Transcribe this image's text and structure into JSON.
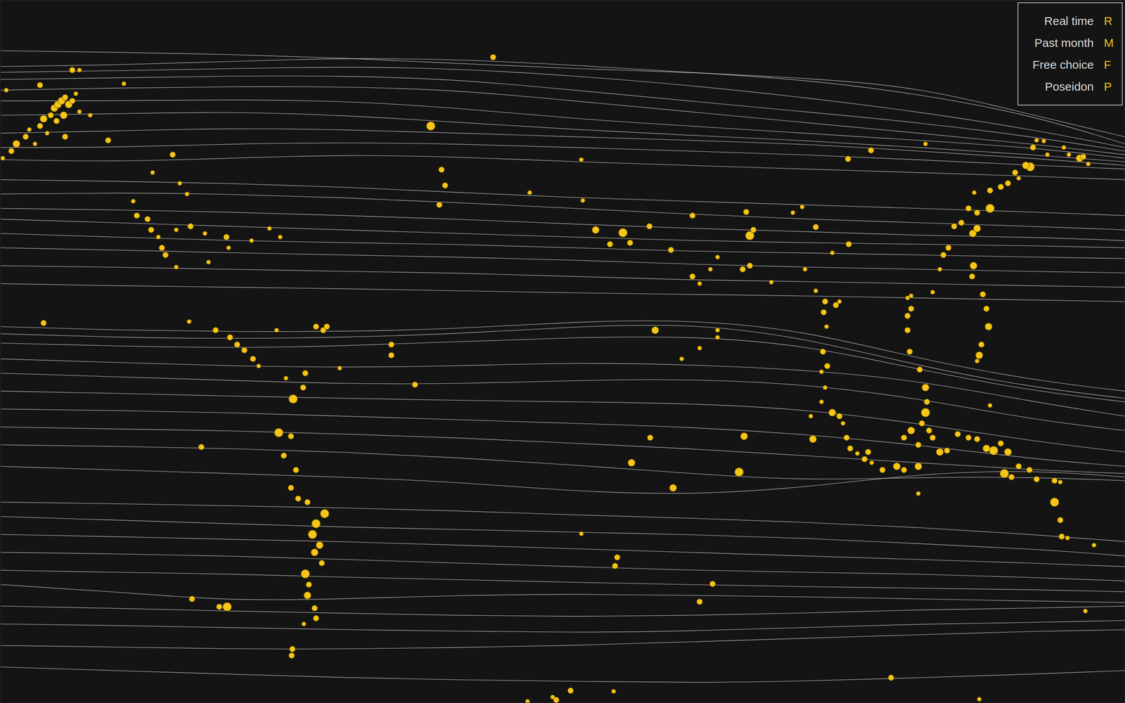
{
  "chart_data": {
    "type": "line",
    "color": "#ffffff",
    "tick_labels": false,
    "legend": "top-right",
    "xlim": [
      0,
      1568
    ],
    "ylim": [
      980,
      0
    ],
    "x": [
      0,
      160,
      320,
      480,
      640,
      800,
      960,
      1120,
      1280,
      1440,
      1568
    ],
    "series": [
      {
        "values": [
          92,
          90,
          85,
          80,
          82,
          90,
          100,
          110,
          130,
          160,
          200
        ]
      },
      {
        "values": [
          100,
          98,
          95,
          92,
          95,
          105,
          118,
          135,
          155,
          180,
          205
        ]
      },
      {
        "values": [
          110,
          108,
          105,
          105,
          110,
          125,
          140,
          155,
          170,
          190,
          210
        ]
      },
      {
        "values": [
          125,
          122,
          120,
          120,
          125,
          140,
          155,
          170,
          185,
          200,
          215
        ]
      },
      {
        "values": [
          140,
          140,
          138,
          140,
          150,
          165,
          175,
          185,
          195,
          205,
          220
        ]
      },
      {
        "values": [
          160,
          158,
          155,
          160,
          170,
          180,
          188,
          195,
          205,
          215,
          225
        ]
      },
      {
        "values": [
          185,
          182,
          178,
          180,
          185,
          190,
          195,
          200,
          210,
          220,
          230
        ]
      },
      {
        "values": [
          205,
          205,
          200,
          198,
          200,
          205,
          210,
          215,
          222,
          230,
          235
        ]
      },
      {
        "values": [
          222,
          225,
          220,
          215,
          218,
          225,
          230,
          235,
          240,
          245,
          250
        ]
      },
      {
        "values": [
          250,
          252,
          255,
          260,
          268,
          275,
          280,
          285,
          290,
          295,
          300
        ]
      },
      {
        "values": [
          270,
          268,
          270,
          275,
          282,
          290,
          298,
          305,
          310,
          315,
          320
        ]
      },
      {
        "values": [
          290,
          292,
          295,
          300,
          305,
          312,
          318,
          322,
          328,
          330,
          335
        ]
      },
      {
        "values": [
          305,
          310,
          315,
          320,
          325,
          330,
          335,
          338,
          340,
          342,
          345
        ]
      },
      {
        "values": [
          325,
          330,
          335,
          338,
          340,
          345,
          350,
          352,
          355,
          358,
          360
        ]
      },
      {
        "values": [
          345,
          348,
          352,
          355,
          358,
          362,
          368,
          372,
          375,
          378,
          380
        ]
      },
      {
        "values": [
          370,
          372,
          375,
          378,
          380,
          385,
          390,
          392,
          395,
          398,
          400
        ]
      },
      {
        "values": [
          395,
          398,
          400,
          402,
          405,
          408,
          410,
          412,
          415,
          418,
          420
        ]
      },
      {
        "values": [
          455,
          460,
          462,
          462,
          458,
          448,
          445,
          460,
          500,
          530,
          545
        ]
      },
      {
        "values": [
          465,
          470,
          472,
          470,
          465,
          455,
          450,
          470,
          510,
          540,
          555
        ]
      },
      {
        "values": [
          478,
          482,
          485,
          482,
          476,
          470,
          468,
          480,
          515,
          545,
          560
        ]
      },
      {
        "values": [
          500,
          505,
          510,
          512,
          510,
          505,
          508,
          515,
          530,
          560,
          580
        ]
      },
      {
        "values": [
          520,
          525,
          530,
          535,
          535,
          530,
          528,
          535,
          555,
          585,
          600
        ]
      },
      {
        "values": [
          545,
          548,
          552,
          555,
          558,
          560,
          562,
          570,
          590,
          615,
          630
        ]
      },
      {
        "values": [
          570,
          572,
          575,
          580,
          585,
          590,
          595,
          605,
          620,
          640,
          650
        ]
      },
      {
        "values": [
          595,
          598,
          600,
          605,
          610,
          618,
          625,
          635,
          645,
          655,
          660
        ]
      },
      {
        "values": [
          620,
          622,
          625,
          630,
          638,
          648,
          660,
          670,
          665,
          665,
          670
        ]
      },
      {
        "values": [
          650,
          655,
          660,
          665,
          672,
          685,
          690,
          680,
          660,
          655,
          665
        ]
      },
      {
        "values": [
          700,
          702,
          705,
          708,
          712,
          718,
          722,
          728,
          735,
          745,
          755
        ]
      },
      {
        "values": [
          720,
          725,
          730,
          735,
          738,
          742,
          745,
          750,
          758,
          765,
          775
        ]
      },
      {
        "values": [
          745,
          748,
          752,
          755,
          760,
          765,
          770,
          775,
          780,
          785,
          790
        ]
      },
      {
        "values": [
          770,
          772,
          775,
          780,
          785,
          790,
          795,
          798,
          800,
          805,
          810
        ]
      },
      {
        "values": [
          795,
          798,
          800,
          805,
          808,
          812,
          815,
          818,
          820,
          822,
          825
        ]
      },
      {
        "values": [
          815,
          825,
          838,
          835,
          830,
          828,
          830,
          832,
          835,
          838,
          840
        ]
      },
      {
        "values": [
          845,
          848,
          852,
          855,
          858,
          860,
          858,
          855,
          850,
          848,
          845
        ]
      },
      {
        "values": [
          870,
          872,
          875,
          878,
          880,
          882,
          880,
          875,
          870,
          868,
          865
        ]
      },
      {
        "values": [
          900,
          902,
          905,
          905,
          903,
          900,
          895,
          890,
          885,
          880,
          878
        ]
      },
      {
        "values": [
          930,
          935,
          940,
          945,
          948,
          950,
          952,
          950,
          945,
          940,
          935
        ]
      },
      {
        "values": [
          70,
          72,
          75,
          80,
          88,
          95,
          100,
          108,
          120,
          160,
          190
        ]
      }
    ],
    "points": {
      "type": "scatter",
      "color": "#f5c518",
      "marker": "circle",
      "x": [
        8,
        22,
        15,
        35,
        40,
        55,
        60,
        70,
        75,
        80,
        85,
        90,
        95,
        100,
        105,
        110,
        65,
        90,
        55,
        100,
        110,
        125,
        150,
        172,
        3,
        48,
        88,
        78,
        185,
        190,
        205,
        210,
        220,
        225,
        230,
        245,
        265,
        245,
        285,
        315,
        318,
        240,
        250,
        260,
        212,
        350,
        375,
        390,
        290,
        60,
        263,
        300,
        320,
        330,
        340,
        352,
        360,
        385,
        440,
        450,
        455,
        545,
        545,
        578,
        600,
        615,
        620,
        612,
        687,
        738,
        810,
        812,
        398,
        408,
        422,
        425,
        388,
        405,
        395,
        412,
        405,
        415,
        428,
        452,
        440,
        435,
        445,
        438,
        448,
        425,
        430,
        428,
        438,
        440,
        423,
        407,
        406,
        280,
        267,
        305,
        316,
        473,
        830,
        850,
        868,
        878,
        905,
        935,
        965,
        965,
        975,
        990,
        1000,
        1035,
        1045,
        1045,
        1040,
        1050,
        1075,
        1105,
        1118,
        1137,
        1160,
        1183,
        1182,
        1214,
        1290,
        1122,
        913,
        950,
        975,
        1000,
        1000,
        906,
        880,
        938,
        1030,
        1037,
        1133,
        993,
        975,
        810,
        860,
        857,
        1137,
        1150,
        1148,
        1165,
        1170,
        1152,
        1147,
        1153,
        1145,
        1150,
        1145,
        1160,
        1170,
        1130,
        1175,
        1180,
        1185,
        1195,
        1205,
        1215,
        1265,
        1270,
        1265,
        1268,
        1282,
        1290,
        1292,
        1290,
        1285,
        1295,
        1270,
        1260,
        1280,
        1300,
        1310,
        1320,
        1230,
        1250,
        1260,
        1280,
        1265,
        1270,
        1300,
        1310,
        1315,
        1322,
        1330,
        1340,
        1350,
        1356,
        1362,
        1358,
        1362,
        1380,
        1380,
        1395,
        1405,
        1415,
        1420,
        1430,
        1440,
        1445,
        1455,
        1436,
        1460,
        1483,
        1490,
        1505,
        1510,
        1517,
        1357,
        1355,
        1370,
        1375,
        1378,
        1368,
        1365,
        1362,
        1335,
        1350,
        1362,
        1375,
        1385,
        1395,
        1405,
        1420,
        1400,
        1410,
        1435,
        1445,
        1470,
        1478,
        1470,
        1478,
        1480,
        1488,
        1525,
        1513,
        1380,
        1242,
        1365,
        1280,
        1210,
        735,
        770,
        775,
        795,
        855
      ],
      "y": [
        125,
        200,
        210,
        190,
        180,
        175,
        165,
        160,
        150,
        145,
        140,
        135,
        145,
        140,
        130,
        155,
        185,
        190,
        118,
        97,
        97,
        160,
        195,
        116,
        220,
        200,
        160,
        168,
        280,
        300,
        305,
        320,
        330,
        345,
        355,
        320,
        315,
        372,
        325,
        330,
        345,
        215,
        255,
        270,
        240,
        335,
        318,
        330,
        365,
        450,
        448,
        460,
        470,
        480,
        488,
        500,
        510,
        460,
        455,
        460,
        455,
        480,
        495,
        536,
        175,
        236,
        258,
        285,
        79,
        268,
        222,
        279,
        527,
        556,
        540,
        520,
        603,
        608,
        635,
        655,
        680,
        695,
        700,
        716,
        730,
        745,
        760,
        770,
        785,
        800,
        815,
        830,
        848,
        862,
        870,
        905,
        914,
        623,
        835,
        846,
        846,
        513,
        320,
        340,
        324,
        338,
        315,
        348,
        300,
        385,
        395,
        375,
        358,
        375,
        370,
        328,
        295,
        320,
        393,
        296,
        288,
        316,
        352,
        340,
        221,
        209,
        200,
        375,
        460,
        500,
        485,
        460,
        470,
        610,
        645,
        680,
        658,
        608,
        612,
        814,
        839,
        744,
        777,
        789,
        405,
        420,
        435,
        425,
        420,
        455,
        490,
        510,
        518,
        540,
        560,
        575,
        580,
        580,
        590,
        610,
        625,
        632,
        640,
        645,
        440,
        430,
        460,
        490,
        515,
        540,
        560,
        575,
        590,
        600,
        600,
        610,
        620,
        610,
        630,
        628,
        655,
        650,
        655,
        650,
        415,
        412,
        407,
        375,
        355,
        345,
        315,
        310,
        290,
        325,
        318,
        268,
        296,
        290,
        265,
        260,
        255,
        240,
        248,
        230,
        205,
        195,
        196,
        232,
        215,
        205,
        215,
        220,
        218,
        228,
        370,
        385,
        410,
        430,
        455,
        480,
        495,
        503,
        605,
        610,
        612,
        625,
        628,
        618,
        630,
        650,
        660,
        665,
        655,
        668,
        670,
        672,
        700,
        725,
        748,
        750,
        760,
        852,
        565,
        945,
        975,
        688,
        630,
        978,
        972,
        976,
        963,
        964
      ],
      "size": [
        3,
        5,
        4,
        4,
        3,
        4,
        5,
        4,
        5,
        5,
        5,
        4,
        5,
        4,
        3,
        3,
        3,
        4,
        4,
        4,
        3,
        3,
        4,
        3,
        3,
        3,
        5,
        4,
        3,
        4,
        4,
        4,
        3,
        4,
        4,
        3,
        4,
        3,
        3,
        4,
        3,
        4,
        3,
        3,
        3,
        3,
        3,
        3,
        3,
        4,
        3,
        4,
        4,
        4,
        4,
        4,
        3,
        3,
        4,
        4,
        4,
        4,
        4,
        4,
        6,
        4,
        4,
        4,
        4,
        3,
        3,
        3,
        3,
        6,
        4,
        4,
        6,
        4,
        4,
        4,
        4,
        4,
        4,
        6,
        6,
        6,
        5,
        5,
        4,
        6,
        4,
        5,
        4,
        4,
        3,
        4,
        4,
        4,
        4,
        4,
        6,
        3,
        5,
        4,
        6,
        4,
        4,
        4,
        4,
        4,
        3,
        3,
        3,
        4,
        4,
        6,
        4,
        4,
        3,
        3,
        3,
        4,
        3,
        4,
        4,
        4,
        3,
        3,
        5,
        3,
        3,
        3,
        3,
        4,
        5,
        5,
        6,
        5,
        5,
        4,
        4,
        3,
        4,
        4,
        3,
        4,
        4,
        4,
        3,
        3,
        4,
        4,
        3,
        3,
        3,
        5,
        4,
        3,
        3,
        4,
        4,
        3,
        4,
        3,
        4,
        4,
        4,
        4,
        4,
        5,
        4,
        6,
        4,
        4,
        5,
        4,
        4,
        4,
        5,
        4,
        4,
        5,
        4,
        5,
        3,
        3,
        3,
        3,
        4,
        4,
        4,
        4,
        4,
        5,
        5,
        3,
        4,
        6,
        4,
        4,
        4,
        4,
        3,
        5,
        4,
        3,
        3,
        6,
        3,
        3,
        3,
        5,
        4,
        3,
        5,
        4,
        4,
        4,
        5,
        4,
        5,
        3,
        4,
        4,
        4,
        5,
        6,
        4,
        5,
        4,
        6,
        4,
        4,
        4,
        4,
        3,
        6,
        4,
        4,
        3,
        3,
        3,
        3,
        4,
        3,
        3,
        4,
        3,
        3,
        4,
        4,
        3
      ]
    },
    "legend_items": [
      {
        "label": "Real time",
        "key": "R"
      },
      {
        "label": "Past month",
        "key": "M"
      },
      {
        "label": "Free choice",
        "key": "F"
      },
      {
        "label": "Poseidon",
        "key": "P"
      }
    ]
  }
}
